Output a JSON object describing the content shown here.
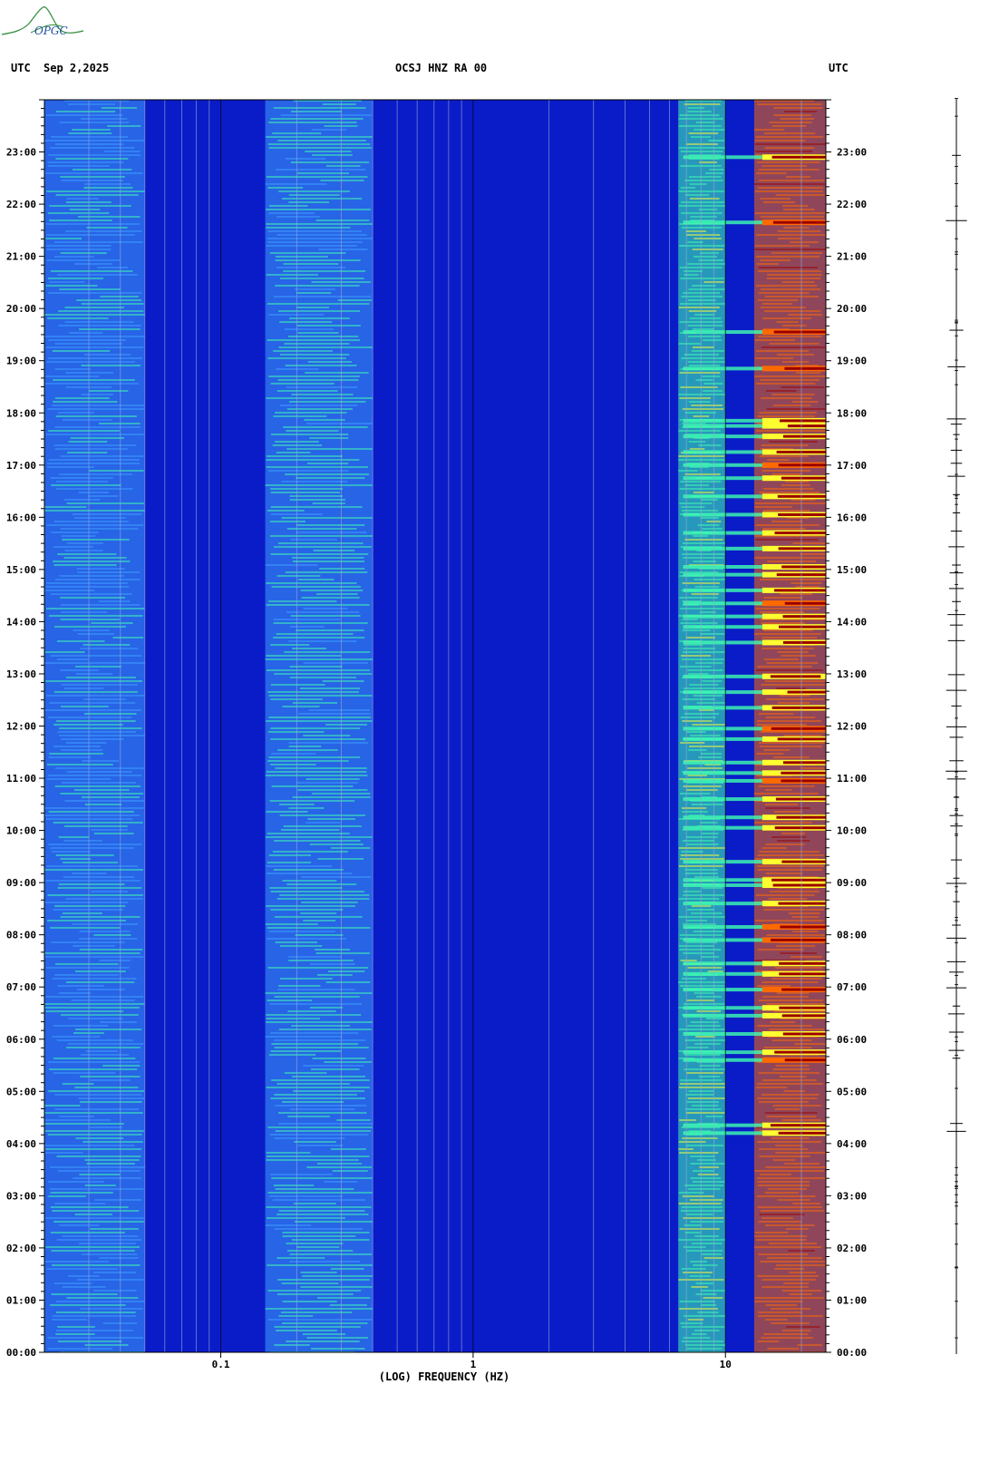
{
  "header": {
    "left_label": "UTC",
    "date": "Sep 2,2025",
    "station": "OCSJ HNZ RA 00",
    "right_label": "UTC",
    "logo_text": "OPGC"
  },
  "chart_data": {
    "type": "heatmap",
    "title": "OCSJ HNZ RA 00",
    "xlabel": "(LOG) FREQUENCY (HZ)",
    "x_scale": "log",
    "xlim_hz": [
      0.02,
      25
    ],
    "x_ticks": [
      {
        "value": 0.1,
        "label": "0.1"
      },
      {
        "value": 1,
        "label": "1"
      },
      {
        "value": 10,
        "label": "10"
      }
    ],
    "y_ticks": [
      "23:00",
      "22:00",
      "21:00",
      "20:00",
      "19:00",
      "18:00",
      "17:00",
      "16:00",
      "15:00",
      "14:00",
      "13:00",
      "12:00",
      "11:00",
      "10:00",
      "09:00",
      "08:00",
      "07:00",
      "06:00",
      "05:00",
      "04:00",
      "03:00",
      "02:00",
      "01:00",
      "00:00"
    ],
    "ylim_hours": [
      0,
      24
    ],
    "colormap": [
      "#00008f",
      "#1b3cff",
      "#3fa0ff",
      "#3fffb0",
      "#ffff30",
      "#ff6a00",
      "#9a0000"
    ],
    "energy_bands": [
      {
        "from_hz": 0.02,
        "to_hz": 0.05,
        "level": 0.32
      },
      {
        "from_hz": 0.15,
        "to_hz": 0.4,
        "level": 0.38
      },
      {
        "from_hz": 6.5,
        "to_hz": 10,
        "level": 0.45
      },
      {
        "from_hz": 13,
        "to_hz": 25,
        "level": 0.75
      }
    ],
    "events_hours": [
      4.2,
      4.35,
      5.6,
      5.75,
      6.1,
      6.45,
      6.6,
      6.95,
      7.25,
      7.45,
      7.9,
      8.15,
      8.6,
      8.95,
      9.05,
      9.4,
      10.05,
      10.25,
      10.6,
      10.95,
      11.1,
      11.3,
      11.75,
      11.95,
      12.35,
      12.65,
      12.95,
      13.6,
      13.9,
      14.1,
      14.35,
      14.6,
      14.9,
      15.05,
      15.4,
      15.7,
      16.05,
      16.4,
      16.75,
      17.0,
      17.25,
      17.55,
      17.75,
      17.85,
      18.85,
      19.55,
      21.65,
      22.9
    ]
  }
}
